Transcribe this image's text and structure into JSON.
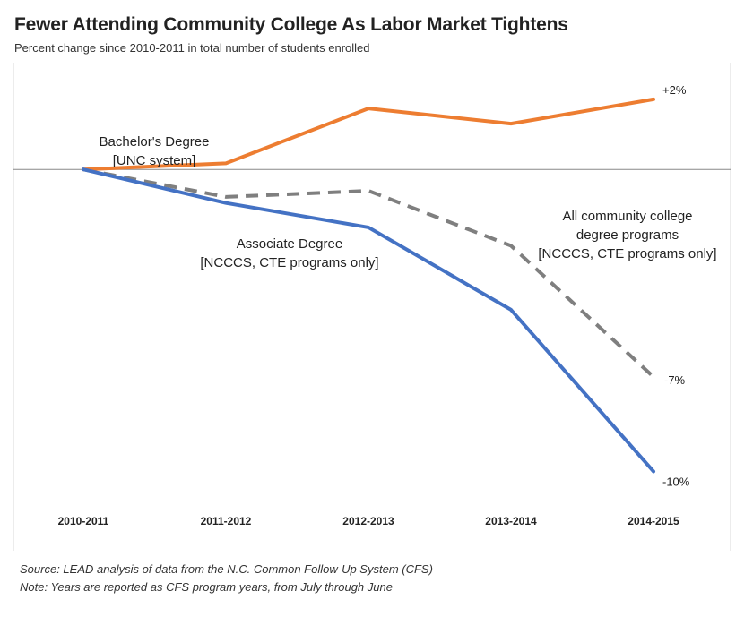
{
  "title": "Fewer Attending Community College As Labor Market Tightens",
  "subtitle": "Percent change since 2010-2011 in total number of students enrolled",
  "source": "Source: LEAD analysis of data from the N.C. Common Follow-Up System (CFS)",
  "note": "Note: Years are reported as CFS program years, from July through June",
  "chart_data": {
    "type": "line",
    "title": "Fewer Attending Community College As Labor Market Tightens",
    "subtitle": "Percent change since 2010-2011 in total number of students enrolled",
    "xlabel": "",
    "ylabel": "",
    "categories": [
      "2010-2011",
      "2011-2012",
      "2012-2013",
      "2013-2014",
      "2014-2015"
    ],
    "ylim": [
      -12.5,
      3.5
    ],
    "grid": false,
    "series": [
      {
        "name": "Bachelor's Degree [UNC system]",
        "label_lines": [
          "Bachelor's Degree",
          "[UNC system]"
        ],
        "values": [
          0,
          0.2,
          2.0,
          1.5,
          2.3
        ],
        "color": "#ED7D31",
        "dash": false,
        "end_label": "+2%"
      },
      {
        "name": "Associate Degree [NCCCS, CTE programs only]",
        "label_lines": [
          "Associate Degree",
          "[NCCCS, CTE programs only]"
        ],
        "values": [
          0,
          -1.1,
          -1.9,
          -4.6,
          -9.9
        ],
        "color": "#4472C4",
        "dash": false,
        "end_label": "-10%"
      },
      {
        "name": "All community college degree programs [NCCCS, CTE programs only]",
        "label_lines": [
          "All community college",
          "degree programs",
          "[NCCCS, CTE programs only]"
        ],
        "values": [
          0,
          -0.9,
          -0.7,
          -2.5,
          -6.8
        ],
        "color": "#7F7F7F",
        "dash": true,
        "end_label": "-7%"
      }
    ]
  }
}
